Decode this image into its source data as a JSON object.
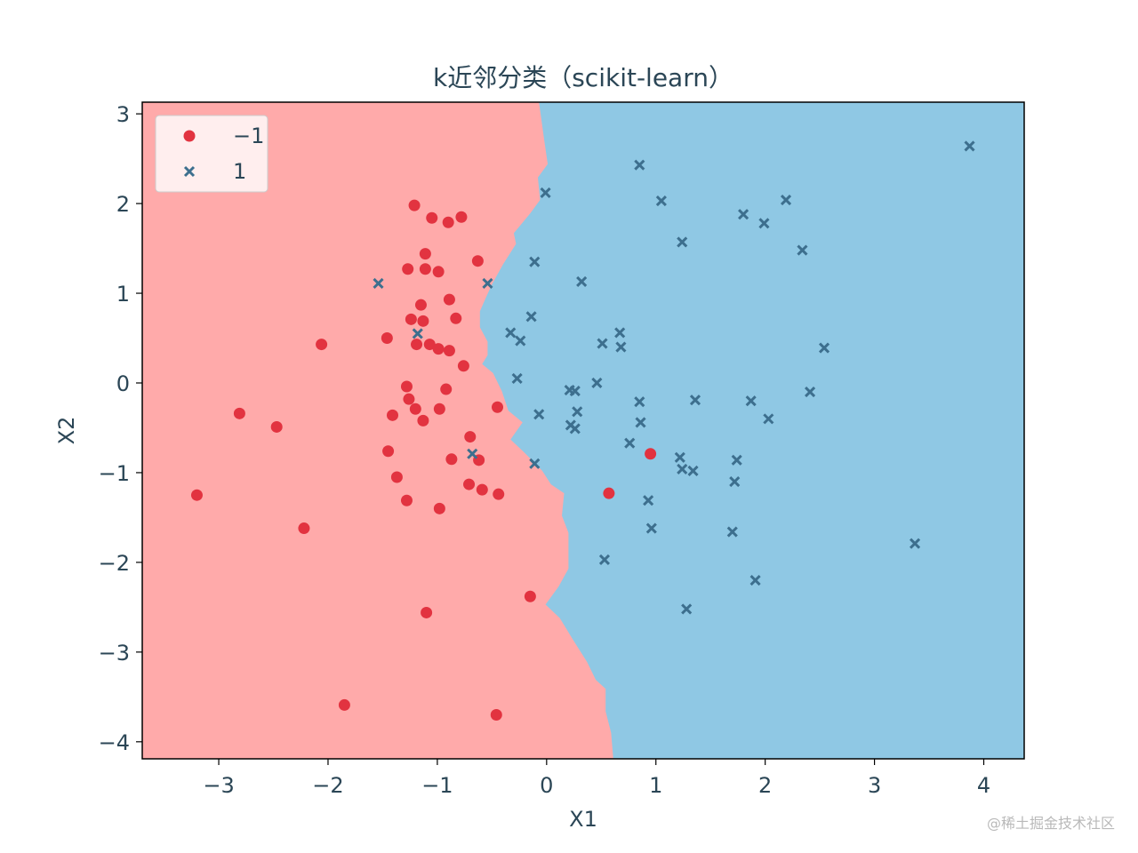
{
  "chart_data": {
    "type": "scatter",
    "title": "k近邻分类（scikit-learn）",
    "xlabel": "X1",
    "ylabel": "X2",
    "xlim": [
      -3.7,
      4.37
    ],
    "ylim": [
      -4.19,
      3.13
    ],
    "xticks": [
      -3,
      -2,
      -1,
      0,
      1,
      2,
      3,
      4
    ],
    "xtick_labels": [
      "−3",
      "−2",
      "−1",
      "0",
      "1",
      "2",
      "3",
      "4"
    ],
    "yticks": [
      -4,
      -3,
      -2,
      -1,
      0,
      1,
      2,
      3
    ],
    "ytick_labels": [
      "−4",
      "−3",
      "−2",
      "−1",
      "0",
      "1",
      "2",
      "3"
    ],
    "grid": false,
    "legend": {
      "placement": "top-left",
      "entries": [
        "−1",
        "1"
      ]
    },
    "regions": {
      "left_class": "−1",
      "right_class": "1",
      "left_color": "#ffaaaa",
      "right_color": "#8fc8e4",
      "boundary": [
        [
          -0.07,
          3.13
        ],
        [
          -0.02,
          2.69
        ],
        [
          0.01,
          2.44
        ],
        [
          -0.08,
          2.29
        ],
        [
          -0.06,
          2.04
        ],
        [
          -0.15,
          1.89
        ],
        [
          -0.3,
          1.67
        ],
        [
          -0.28,
          1.55
        ],
        [
          -0.4,
          1.32
        ],
        [
          -0.5,
          1.1
        ],
        [
          -0.56,
          0.94
        ],
        [
          -0.61,
          0.8
        ],
        [
          -0.61,
          0.62
        ],
        [
          -0.54,
          0.46
        ],
        [
          -0.54,
          0.31
        ],
        [
          -0.59,
          0.21
        ],
        [
          -0.49,
          0.11
        ],
        [
          -0.41,
          -0.09
        ],
        [
          -0.35,
          -0.31
        ],
        [
          -0.22,
          -0.44
        ],
        [
          -0.33,
          -0.63
        ],
        [
          -0.2,
          -0.78
        ],
        [
          -0.04,
          -0.98
        ],
        [
          0.04,
          -1.13
        ],
        [
          0.16,
          -1.23
        ],
        [
          0.14,
          -1.48
        ],
        [
          0.2,
          -1.67
        ],
        [
          0.2,
          -2.07
        ],
        [
          0.11,
          -2.27
        ],
        [
          -0.01,
          -2.47
        ],
        [
          0.12,
          -2.62
        ],
        [
          0.24,
          -2.86
        ],
        [
          0.37,
          -3.11
        ],
        [
          0.45,
          -3.31
        ],
        [
          0.54,
          -3.41
        ],
        [
          0.54,
          -3.66
        ],
        [
          0.59,
          -3.9
        ],
        [
          0.61,
          -4.19
        ]
      ]
    },
    "series": [
      {
        "name": "−1",
        "marker": "circle",
        "color": "#e23340",
        "points": [
          [
            -1.21,
            1.98
          ],
          [
            -1.05,
            1.84
          ],
          [
            -0.9,
            1.79
          ],
          [
            -0.78,
            1.85
          ],
          [
            -1.11,
            1.44
          ],
          [
            -1.27,
            1.27
          ],
          [
            -1.11,
            1.27
          ],
          [
            -0.99,
            1.24
          ],
          [
            -0.63,
            1.36
          ],
          [
            -0.89,
            0.93
          ],
          [
            -1.15,
            0.87
          ],
          [
            -1.24,
            0.71
          ],
          [
            -1.13,
            0.69
          ],
          [
            -0.83,
            0.72
          ],
          [
            -1.46,
            0.5
          ],
          [
            -2.06,
            0.43
          ],
          [
            -1.19,
            0.43
          ],
          [
            -1.07,
            0.43
          ],
          [
            -0.99,
            0.38
          ],
          [
            -0.89,
            0.36
          ],
          [
            -0.76,
            0.19
          ],
          [
            -1.28,
            -0.04
          ],
          [
            -0.92,
            -0.07
          ],
          [
            -1.26,
            -0.18
          ],
          [
            -1.2,
            -0.29
          ],
          [
            -0.98,
            -0.29
          ],
          [
            -1.41,
            -0.36
          ],
          [
            -1.13,
            -0.42
          ],
          [
            -0.45,
            -0.27
          ],
          [
            -2.81,
            -0.34
          ],
          [
            -2.47,
            -0.49
          ],
          [
            -0.7,
            -0.6
          ],
          [
            -1.45,
            -0.76
          ],
          [
            -0.87,
            -0.85
          ],
          [
            -0.62,
            -0.86
          ],
          [
            0.95,
            -0.79
          ],
          [
            -1.37,
            -1.05
          ],
          [
            -0.71,
            -1.13
          ],
          [
            -0.59,
            -1.19
          ],
          [
            -0.44,
            -1.24
          ],
          [
            0.57,
            -1.23
          ],
          [
            -3.2,
            -1.25
          ],
          [
            -1.28,
            -1.31
          ],
          [
            -0.98,
            -1.4
          ],
          [
            -2.22,
            -1.62
          ],
          [
            -0.15,
            -2.38
          ],
          [
            -1.1,
            -2.56
          ],
          [
            -1.85,
            -3.59
          ],
          [
            -0.46,
            -3.7
          ]
        ]
      },
      {
        "name": "1",
        "marker": "x",
        "color": "#3d6f8e",
        "points": [
          [
            3.87,
            2.64
          ],
          [
            0.85,
            2.43
          ],
          [
            -0.01,
            2.12
          ],
          [
            1.05,
            2.03
          ],
          [
            2.19,
            2.04
          ],
          [
            1.8,
            1.88
          ],
          [
            1.99,
            1.78
          ],
          [
            1.24,
            1.57
          ],
          [
            2.34,
            1.48
          ],
          [
            -0.11,
            1.35
          ],
          [
            0.32,
            1.13
          ],
          [
            -1.54,
            1.11
          ],
          [
            -0.54,
            1.11
          ],
          [
            -0.14,
            0.74
          ],
          [
            -1.18,
            0.55
          ],
          [
            -0.33,
            0.56
          ],
          [
            -0.24,
            0.47
          ],
          [
            0.67,
            0.56
          ],
          [
            0.51,
            0.44
          ],
          [
            0.68,
            0.4
          ],
          [
            2.54,
            0.39
          ],
          [
            -0.27,
            0.05
          ],
          [
            0.46,
            0.0
          ],
          [
            0.21,
            -0.08
          ],
          [
            0.26,
            -0.09
          ],
          [
            2.41,
            -0.1
          ],
          [
            0.85,
            -0.21
          ],
          [
            1.36,
            -0.19
          ],
          [
            1.87,
            -0.2
          ],
          [
            -0.07,
            -0.35
          ],
          [
            0.28,
            -0.32
          ],
          [
            2.03,
            -0.4
          ],
          [
            0.86,
            -0.44
          ],
          [
            0.22,
            -0.47
          ],
          [
            0.26,
            -0.51
          ],
          [
            0.76,
            -0.67
          ],
          [
            -0.68,
            -0.79
          ],
          [
            1.22,
            -0.83
          ],
          [
            1.74,
            -0.86
          ],
          [
            -0.11,
            -0.9
          ],
          [
            1.24,
            -0.96
          ],
          [
            1.34,
            -0.98
          ],
          [
            1.72,
            -1.1
          ],
          [
            0.93,
            -1.31
          ],
          [
            0.96,
            -1.62
          ],
          [
            1.7,
            -1.66
          ],
          [
            3.37,
            -1.79
          ],
          [
            0.53,
            -1.97
          ],
          [
            1.91,
            -2.2
          ],
          [
            1.28,
            -2.52
          ]
        ]
      }
    ]
  },
  "watermark": "@稀土掘金技术社区"
}
